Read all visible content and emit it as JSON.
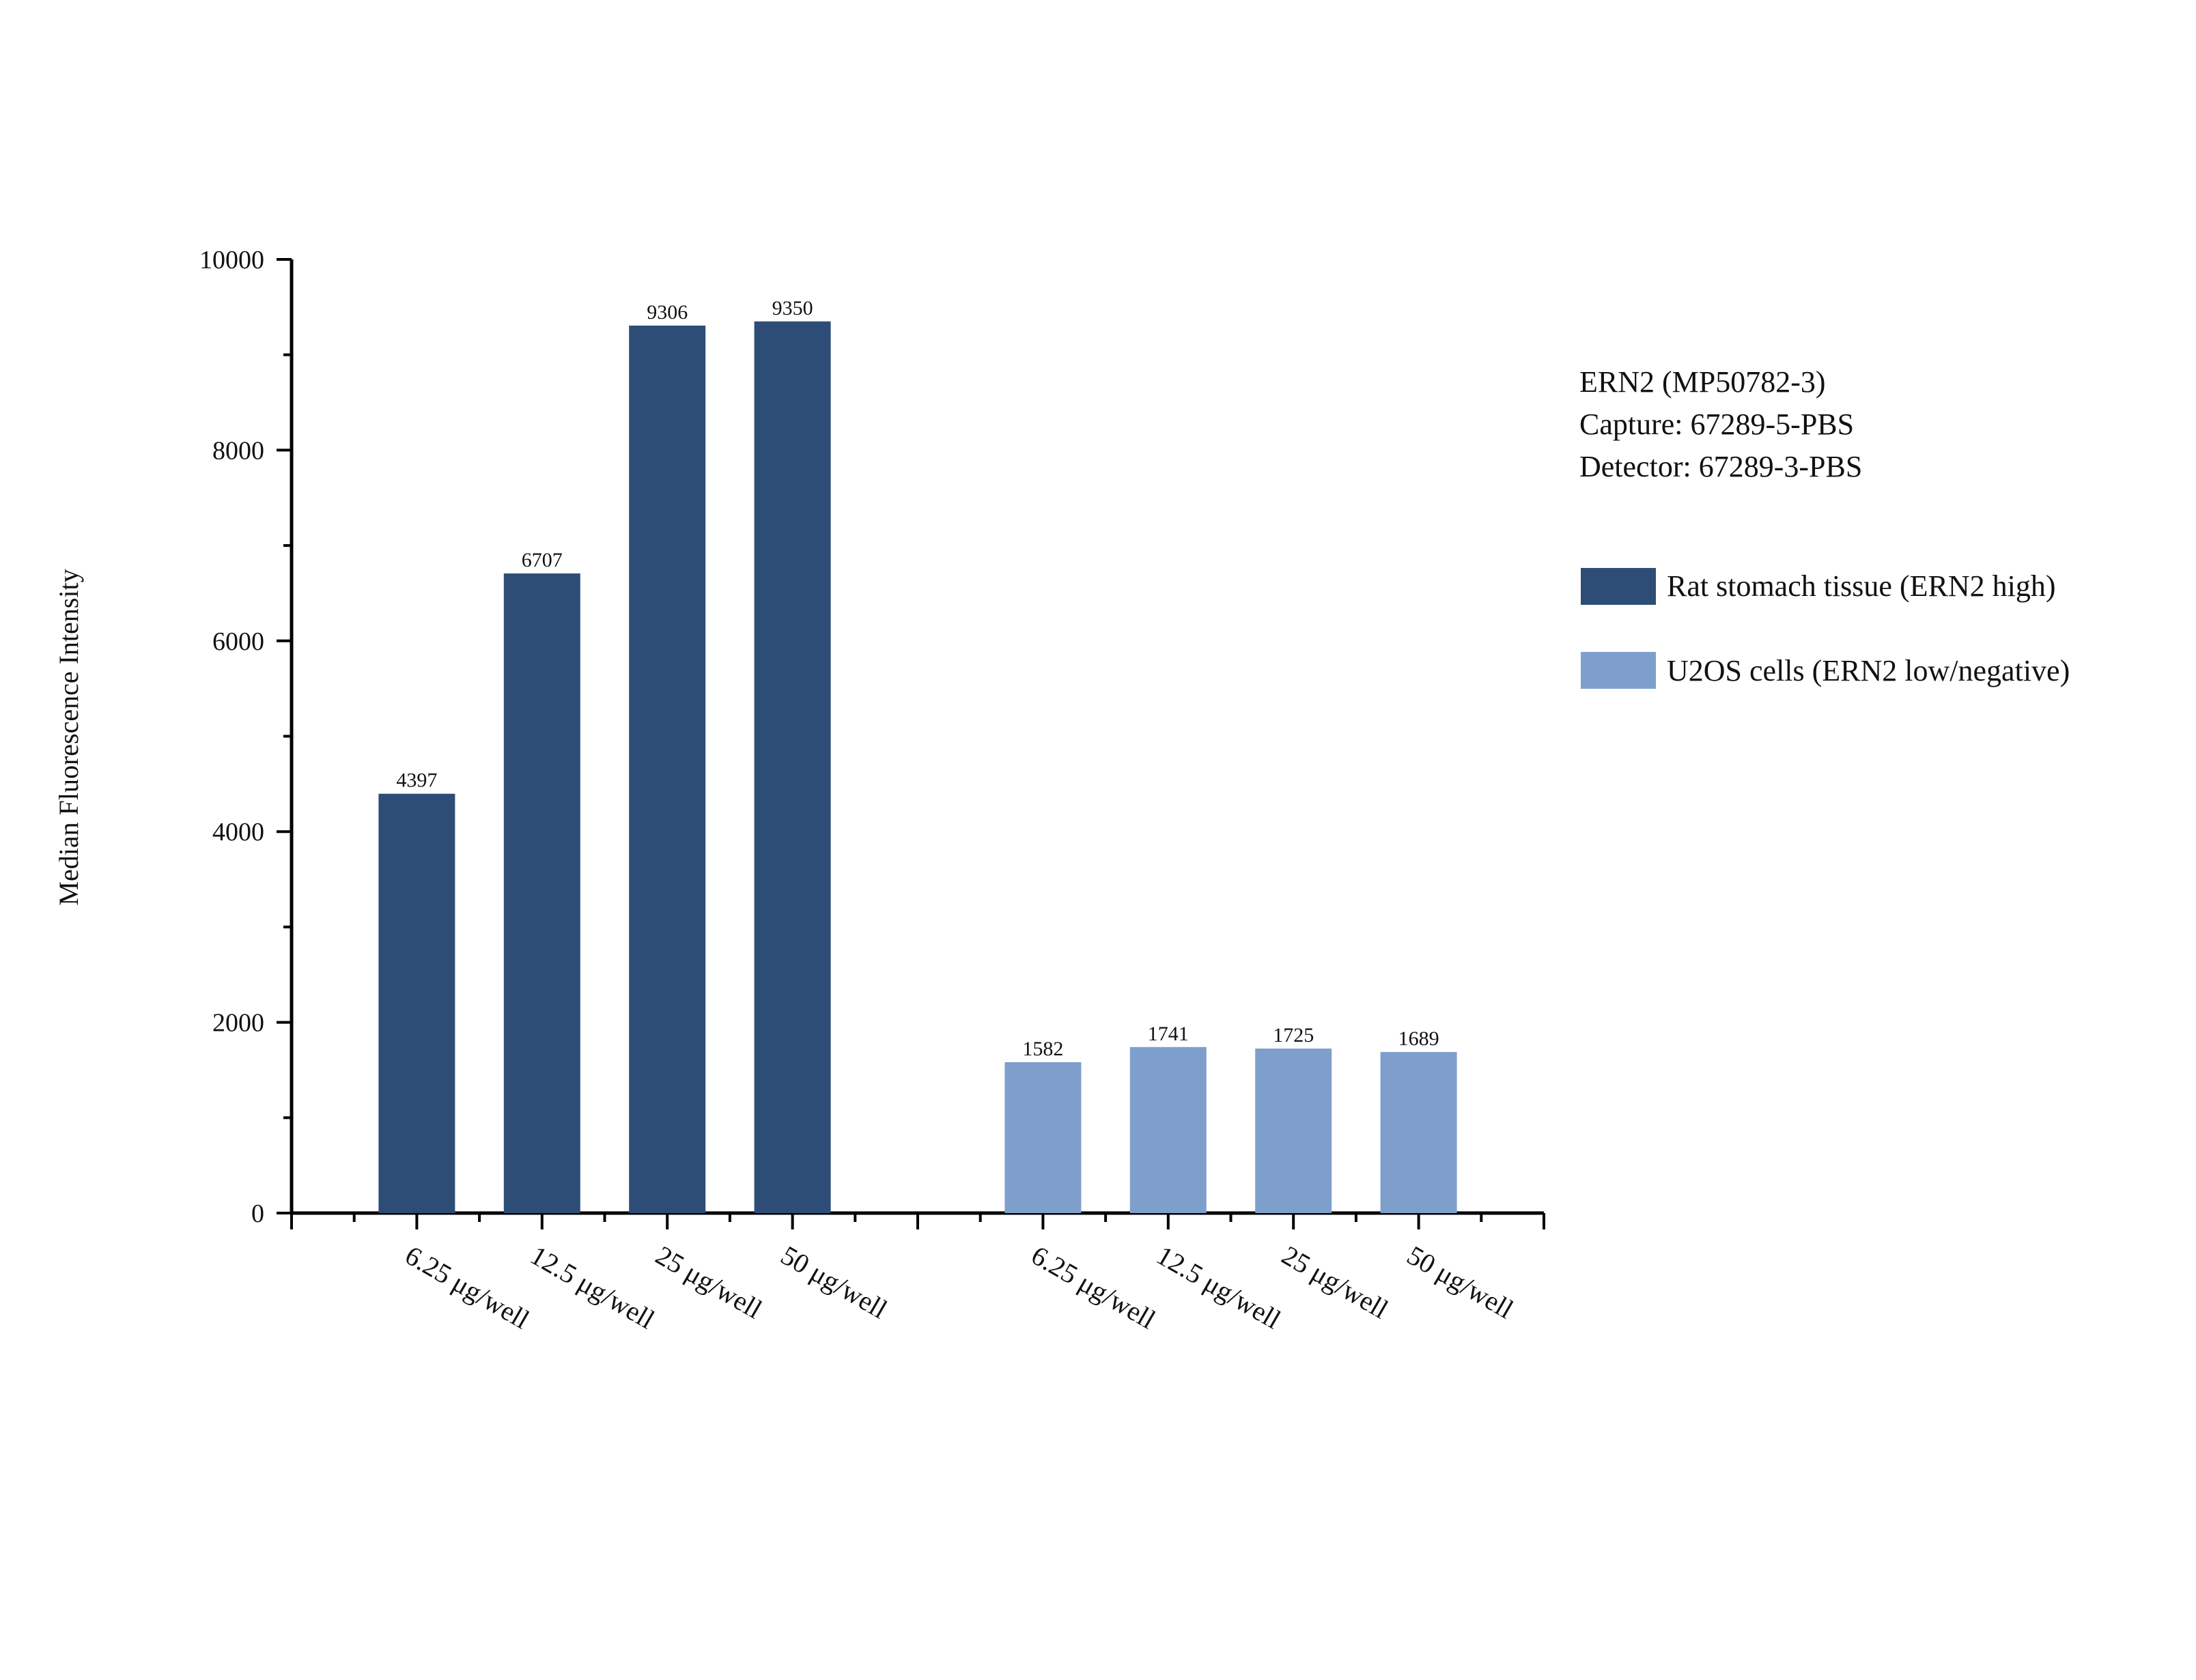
{
  "chart_data": {
    "type": "bar",
    "ylabel": "Median Fluorescence Intensity",
    "ylim": [
      0,
      10000
    ],
    "y_ticks": [
      "0",
      "2000",
      "4000",
      "6000",
      "8000",
      "10000"
    ],
    "annotation": [
      "ERN2 (MP50782-3)",
      "Capture: 67289-5-PBS",
      "Detector: 67289-3-PBS"
    ],
    "legend_position": "right",
    "series": [
      {
        "name": "Rat stomach tissue (ERN2 high)",
        "color": "#2E4D76",
        "categories": [
          "6.25 μg/well",
          "12.5 μg/well",
          "25 μg/well",
          "50 μg/well"
        ],
        "values": [
          4397,
          6707,
          9306,
          9350
        ],
        "value_labels": [
          "4397",
          "6707",
          "9306",
          "9350"
        ]
      },
      {
        "name": "U2OS cells (ERN2 low/negative)",
        "color": "#7E9FCC",
        "categories": [
          "6.25 μg/well",
          "12.5 μg/well",
          "25 μg/well",
          "50 μg/well"
        ],
        "values": [
          1582,
          1741,
          1725,
          1689
        ],
        "value_labels": [
          "1582",
          "1741",
          "1725",
          "1689"
        ]
      }
    ]
  }
}
